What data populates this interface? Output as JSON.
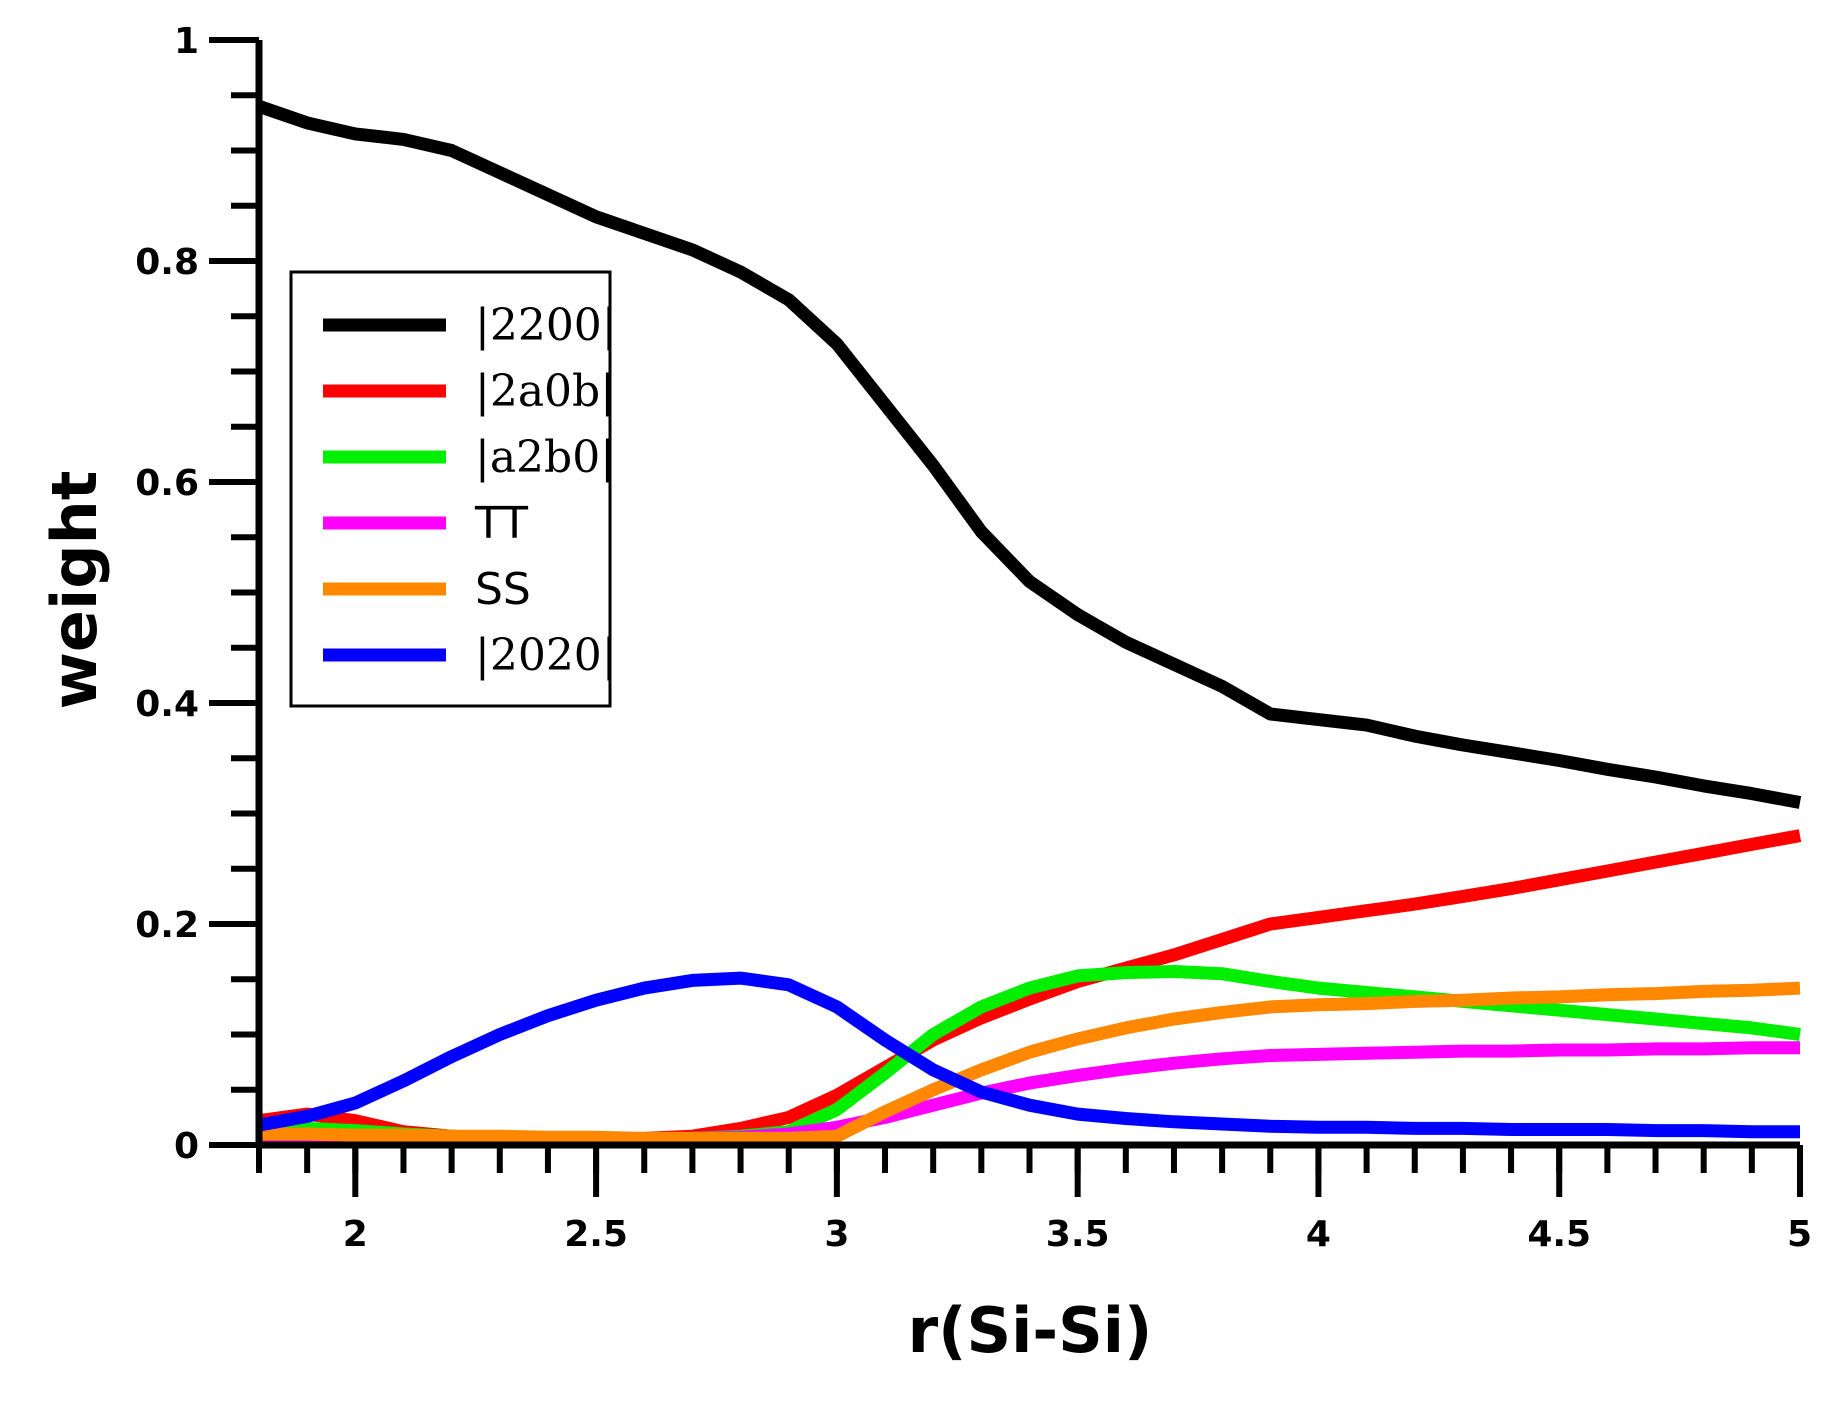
{
  "chart_data": {
    "type": "line",
    "title": "",
    "xlabel": "r(Si-Si)",
    "ylabel": "weight",
    "xlim": [
      1.8,
      5
    ],
    "ylim": [
      0,
      1
    ],
    "xticks": [
      2,
      2.5,
      3,
      3.5,
      4,
      4.5,
      5
    ],
    "xtick_labels": [
      "2",
      "2.5",
      "3",
      "3.5",
      "4",
      "4.5",
      "5"
    ],
    "yticks": [
      0,
      0.2,
      0.4,
      0.6,
      0.8,
      1
    ],
    "ytick_labels": [
      "0",
      "0.2",
      "0.4",
      "0.6",
      "0.8",
      "1"
    ],
    "x_minor_step": 0.1,
    "y_minor_step": 0.05,
    "grid": false,
    "legend_position": "center-left",
    "x": [
      1.8,
      1.9,
      2.0,
      2.1,
      2.2,
      2.3,
      2.4,
      2.5,
      2.6,
      2.7,
      2.8,
      2.9,
      3.0,
      3.1,
      3.2,
      3.3,
      3.4,
      3.5,
      3.6,
      3.7,
      3.8,
      3.9,
      4.0,
      4.1,
      4.2,
      4.3,
      4.4,
      4.5,
      4.6,
      4.7,
      4.8,
      4.9,
      5.0
    ],
    "series": [
      {
        "name": "|2200|",
        "color": "#000000",
        "values": [
          0.94,
          0.925,
          0.915,
          0.91,
          0.9,
          0.88,
          0.86,
          0.84,
          0.825,
          0.81,
          0.79,
          0.765,
          0.725,
          0.67,
          0.615,
          0.555,
          0.51,
          0.48,
          0.455,
          0.435,
          0.415,
          0.39,
          0.385,
          0.38,
          0.37,
          0.362,
          0.355,
          0.348,
          0.34,
          0.333,
          0.325,
          0.318,
          0.31
        ]
      },
      {
        "name": "|2a0b|",
        "color": "#ff0000",
        "values": [
          0.022,
          0.028,
          0.022,
          0.012,
          0.008,
          0.006,
          0.005,
          0.005,
          0.006,
          0.008,
          0.015,
          0.025,
          0.045,
          0.07,
          0.095,
          0.115,
          0.132,
          0.148,
          0.16,
          0.172,
          0.186,
          0.2,
          0.206,
          0.212,
          0.218,
          0.225,
          0.232,
          0.24,
          0.248,
          0.256,
          0.264,
          0.272,
          0.28
        ]
      },
      {
        "name": "|a2b0|",
        "color": "#00ee00",
        "values": [
          0.016,
          0.015,
          0.013,
          0.01,
          0.008,
          0.006,
          0.005,
          0.005,
          0.005,
          0.006,
          0.008,
          0.012,
          0.032,
          0.065,
          0.1,
          0.125,
          0.142,
          0.153,
          0.156,
          0.157,
          0.155,
          0.148,
          0.142,
          0.138,
          0.134,
          0.13,
          0.126,
          0.122,
          0.118,
          0.114,
          0.11,
          0.106,
          0.1
        ]
      },
      {
        "name": "TT",
        "color": "#ff00ff",
        "values": [
          0.008,
          0.008,
          0.007,
          0.007,
          0.006,
          0.006,
          0.005,
          0.005,
          0.005,
          0.006,
          0.007,
          0.01,
          0.016,
          0.025,
          0.036,
          0.047,
          0.056,
          0.063,
          0.069,
          0.074,
          0.078,
          0.081,
          0.082,
          0.083,
          0.084,
          0.085,
          0.085,
          0.086,
          0.086,
          0.087,
          0.087,
          0.088,
          0.088
        ]
      },
      {
        "name": "SS",
        "color": "#ff8800",
        "values": [
          0.01,
          0.01,
          0.009,
          0.009,
          0.008,
          0.008,
          0.007,
          0.007,
          0.006,
          0.006,
          0.006,
          0.006,
          0.008,
          0.03,
          0.05,
          0.068,
          0.084,
          0.096,
          0.106,
          0.114,
          0.12,
          0.125,
          0.127,
          0.128,
          0.13,
          0.131,
          0.133,
          0.134,
          0.136,
          0.137,
          0.139,
          0.14,
          0.142
        ]
      },
      {
        "name": "|2020|",
        "color": "#0000ff",
        "values": [
          0.018,
          0.026,
          0.038,
          0.058,
          0.08,
          0.1,
          0.117,
          0.131,
          0.142,
          0.149,
          0.151,
          0.145,
          0.125,
          0.095,
          0.068,
          0.048,
          0.036,
          0.028,
          0.024,
          0.021,
          0.019,
          0.017,
          0.016,
          0.016,
          0.015,
          0.015,
          0.014,
          0.014,
          0.014,
          0.013,
          0.013,
          0.012,
          0.012
        ]
      }
    ]
  }
}
